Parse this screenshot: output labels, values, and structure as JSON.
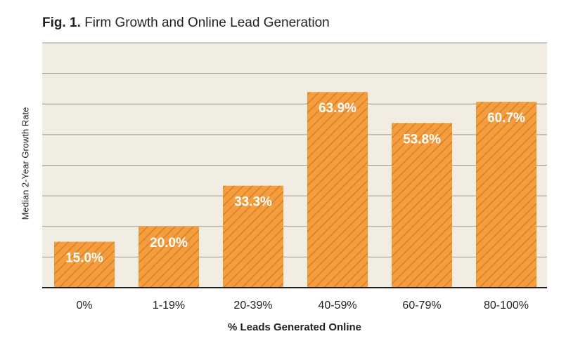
{
  "title": {
    "fig_label": "Fig. 1.",
    "text": "Firm Growth and Online Lead Generation"
  },
  "colors": {
    "bar": "#f59d3d",
    "hatch": "#c97a28",
    "plot_bg": "#f1ede2",
    "grid": "#9b9b9b",
    "axis": "#231f20",
    "bar_label": "#ffffff"
  },
  "chart_data": {
    "type": "bar",
    "title": "Fig. 1. Firm Growth and Online Lead Generation",
    "xlabel": "% Leads Generated Online",
    "ylabel": "Median 2-Year Growth Rate",
    "categories": [
      "0%",
      "1-19%",
      "20-39%",
      "40-59%",
      "60-79%",
      "80-100%"
    ],
    "values": [
      15.0,
      20.0,
      33.3,
      63.9,
      53.8,
      60.7
    ],
    "value_labels": [
      "15.0%",
      "20.0%",
      "33.3%",
      "63.9%",
      "53.8%",
      "60.7%"
    ],
    "ylim": [
      0,
      80
    ],
    "y_gridlines": [
      10,
      20,
      30,
      40,
      50,
      60,
      70,
      80
    ],
    "y_tick_labels_shown": false,
    "grid": true,
    "legend": "none",
    "bar_pattern": "diagonal-hatch"
  }
}
